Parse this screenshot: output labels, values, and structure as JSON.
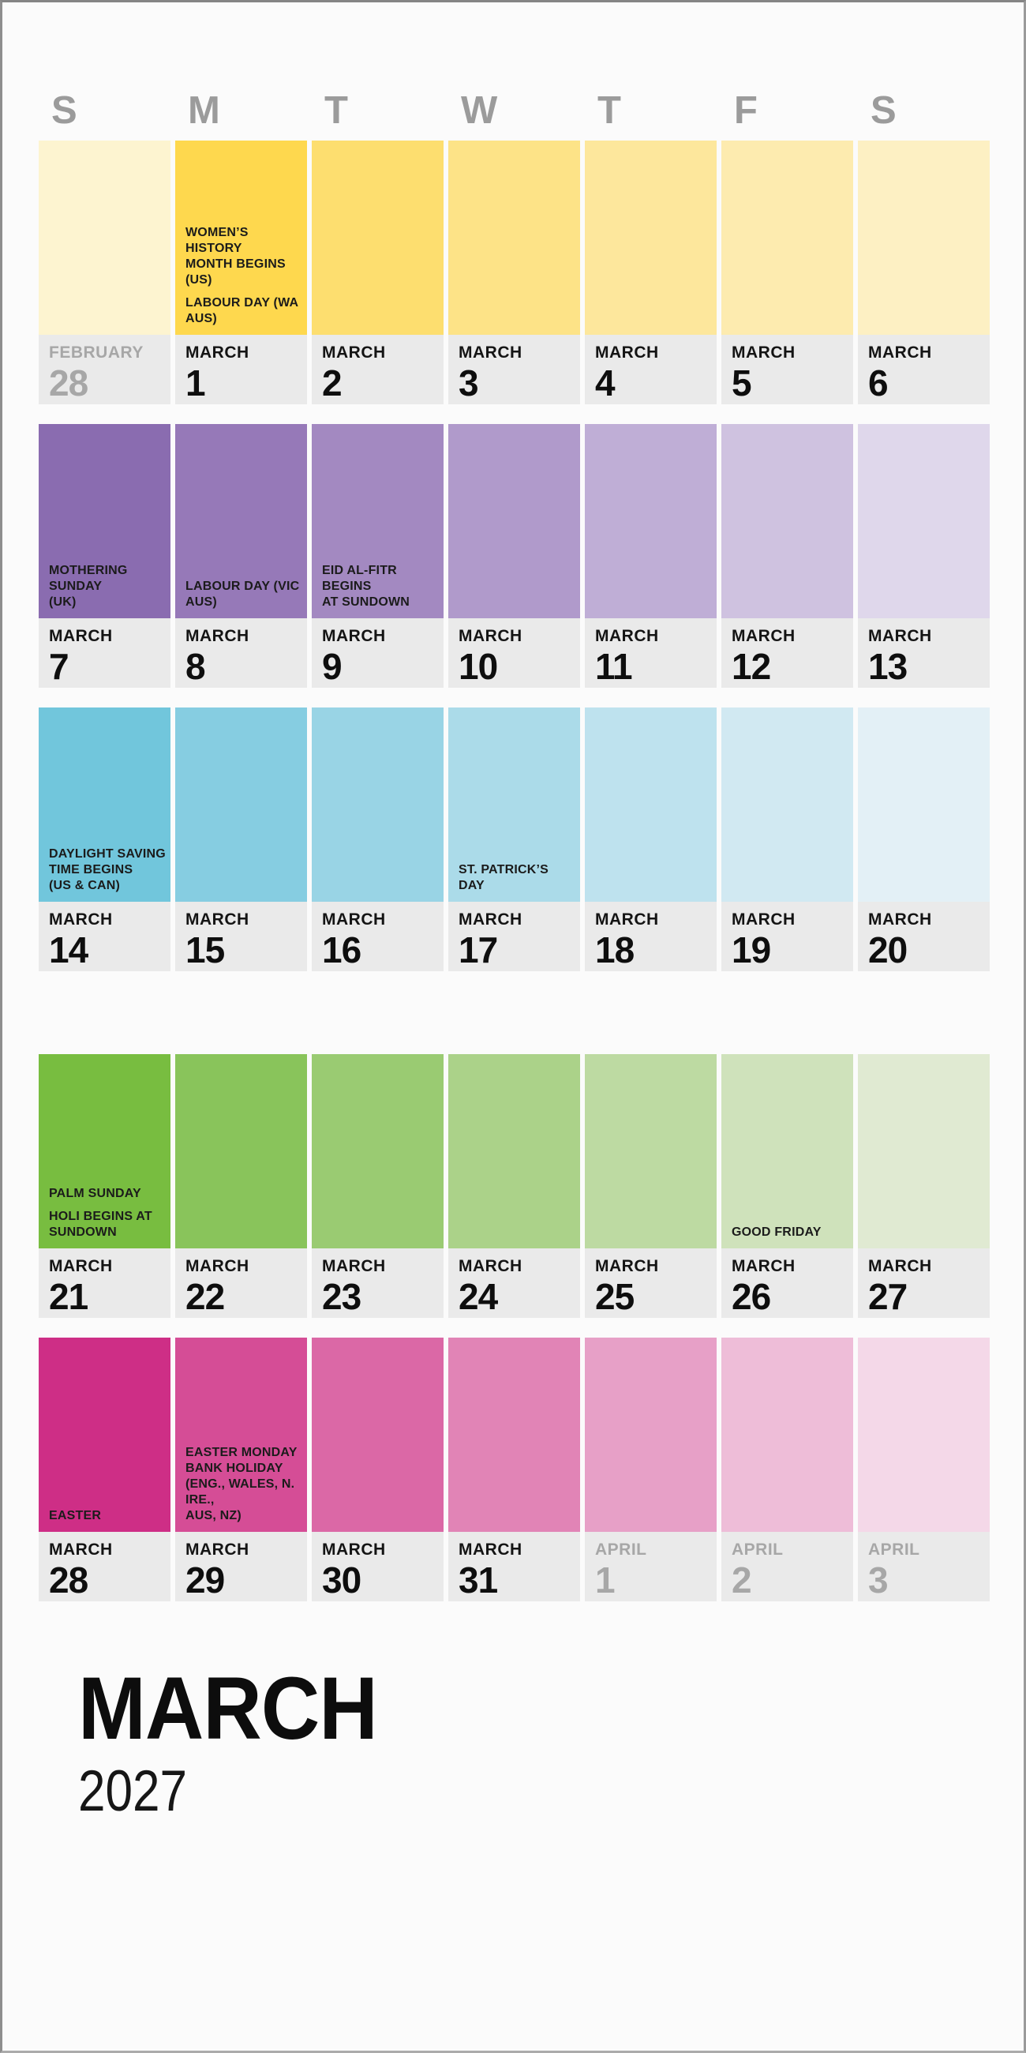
{
  "weekday_headers": [
    "S",
    "M",
    "T",
    "W",
    "T",
    "F",
    "S"
  ],
  "footer": {
    "month": "MARCH",
    "year": "2027"
  },
  "colors": {
    "page_background": "#FBFBFB",
    "date_band_background": "#EAEAEA",
    "weekday_header_text": "#9B9B9B",
    "in_month_text": "#111111",
    "out_of_month_text": "#A7A7A7",
    "holiday_text": "#1B1B1B"
  },
  "weeks": [
    {
      "days": [
        {
          "month": "FEBRUARY",
          "num": "28",
          "out": true,
          "color": "#FDF4D0",
          "holidays": []
        },
        {
          "month": "MARCH",
          "num": "1",
          "out": false,
          "color": "#FED84E",
          "holidays": [
            "WOMEN’S HISTORY\nMONTH BEGINS (US)",
            "LABOUR DAY (WA AUS)"
          ]
        },
        {
          "month": "MARCH",
          "num": "2",
          "out": false,
          "color": "#FDDE6F",
          "holidays": []
        },
        {
          "month": "MARCH",
          "num": "3",
          "out": false,
          "color": "#FDE387",
          "holidays": []
        },
        {
          "month": "MARCH",
          "num": "4",
          "out": false,
          "color": "#FDE79C",
          "holidays": []
        },
        {
          "month": "MARCH",
          "num": "5",
          "out": false,
          "color": "#FDEBAF",
          "holidays": []
        },
        {
          "month": "MARCH",
          "num": "6",
          "out": false,
          "color": "#FDF0C3",
          "holidays": []
        }
      ]
    },
    {
      "days": [
        {
          "month": "MARCH",
          "num": "7",
          "out": false,
          "color": "#8A6CB0",
          "holidays": [
            "MOTHERING SUNDAY\n(UK)"
          ]
        },
        {
          "month": "MARCH",
          "num": "8",
          "out": false,
          "color": "#9679B8",
          "holidays": [
            "LABOUR DAY (VIC AUS)"
          ]
        },
        {
          "month": "MARCH",
          "num": "9",
          "out": false,
          "color": "#A389C1",
          "holidays": [
            "EID AL-FITR BEGINS\nAT SUNDOWN"
          ]
        },
        {
          "month": "MARCH",
          "num": "10",
          "out": false,
          "color": "#B09ACB",
          "holidays": []
        },
        {
          "month": "MARCH",
          "num": "11",
          "out": false,
          "color": "#BFAED6",
          "holidays": []
        },
        {
          "month": "MARCH",
          "num": "12",
          "out": false,
          "color": "#CFC2E0",
          "holidays": []
        },
        {
          "month": "MARCH",
          "num": "13",
          "out": false,
          "color": "#DFD7EB",
          "holidays": []
        }
      ]
    },
    {
      "days": [
        {
          "month": "MARCH",
          "num": "14",
          "out": false,
          "color": "#71C6DC",
          "holidays": [
            "DAYLIGHT SAVING\nTIME BEGINS\n(US & CAN)"
          ]
        },
        {
          "month": "MARCH",
          "num": "15",
          "out": false,
          "color": "#86CDE1",
          "holidays": []
        },
        {
          "month": "MARCH",
          "num": "16",
          "out": false,
          "color": "#99D4E5",
          "holidays": []
        },
        {
          "month": "MARCH",
          "num": "17",
          "out": false,
          "color": "#ABDBE9",
          "holidays": [
            "ST. PATRICK’S DAY"
          ]
        },
        {
          "month": "MARCH",
          "num": "18",
          "out": false,
          "color": "#BEE2EE",
          "holidays": []
        },
        {
          "month": "MARCH",
          "num": "19",
          "out": false,
          "color": "#D1E9F2",
          "holidays": []
        },
        {
          "month": "MARCH",
          "num": "20",
          "out": false,
          "color": "#E3F0F6",
          "holidays": []
        }
      ]
    },
    {
      "after_fold": true,
      "days": [
        {
          "month": "MARCH",
          "num": "21",
          "out": false,
          "color": "#78BD40",
          "holidays": [
            "PALM SUNDAY",
            "HOLI BEGINS AT\nSUNDOWN"
          ]
        },
        {
          "month": "MARCH",
          "num": "22",
          "out": false,
          "color": "#89C45B",
          "holidays": []
        },
        {
          "month": "MARCH",
          "num": "23",
          "out": false,
          "color": "#9ACB72",
          "holidays": []
        },
        {
          "month": "MARCH",
          "num": "24",
          "out": false,
          "color": "#ABD289",
          "holidays": []
        },
        {
          "month": "MARCH",
          "num": "25",
          "out": false,
          "color": "#BDDAA2",
          "holidays": []
        },
        {
          "month": "MARCH",
          "num": "26",
          "out": false,
          "color": "#CFE2BB",
          "holidays": [
            "GOOD FRIDAY"
          ]
        },
        {
          "month": "MARCH",
          "num": "27",
          "out": false,
          "color": "#E0EAD2",
          "holidays": []
        }
      ]
    },
    {
      "days": [
        {
          "month": "MARCH",
          "num": "28",
          "out": false,
          "color": "#CE2E86",
          "holidays": [
            "EASTER"
          ]
        },
        {
          "month": "MARCH",
          "num": "29",
          "out": false,
          "color": "#D54D96",
          "holidays": [
            "EASTER MONDAY\nBANK HOLIDAY\n(ENG., WALES, N. IRE.,\nAUS, NZ)"
          ]
        },
        {
          "month": "MARCH",
          "num": "30",
          "out": false,
          "color": "#DB68A6",
          "holidays": []
        },
        {
          "month": "MARCH",
          "num": "31",
          "out": false,
          "color": "#E184B6",
          "holidays": []
        },
        {
          "month": "APRIL",
          "num": "1",
          "out": true,
          "color": "#E7A0C7",
          "holidays": []
        },
        {
          "month": "APRIL",
          "num": "2",
          "out": true,
          "color": "#EEBDD8",
          "holidays": []
        },
        {
          "month": "APRIL",
          "num": "3",
          "out": true,
          "color": "#F4D8E8",
          "holidays": []
        }
      ]
    }
  ]
}
